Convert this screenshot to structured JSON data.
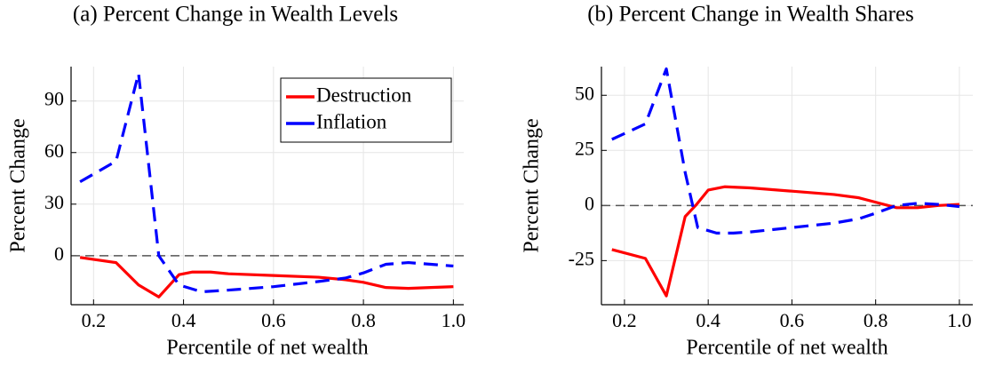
{
  "chart_data": [
    {
      "type": "line",
      "title": "(a) Percent Change in Wealth Levels",
      "xlabel": "Percentile of net wealth",
      "ylabel": "Percent Change",
      "xlim": [
        0.15,
        1.023
      ],
      "ylim": [
        -28.5,
        110
      ],
      "xticks": [
        0.2,
        0.4,
        0.6,
        0.8,
        {
          "value": 1.0,
          "label": "1.0"
        }
      ],
      "yticks": [
        0,
        30,
        60,
        90
      ],
      "grid": true,
      "hline": 0,
      "legend": "upper right",
      "series": [
        {
          "name": "Destruction",
          "color": "#ff0000",
          "style": "solid",
          "x": [
            0.17,
            0.25,
            0.3,
            0.345,
            0.39,
            0.42,
            0.46,
            0.5,
            0.6,
            0.7,
            0.76,
            0.8,
            0.85,
            0.9,
            0.95,
            1.0
          ],
          "values": [
            -1,
            -4,
            -17,
            -24,
            -11,
            -9.5,
            -9.5,
            -10.5,
            -11.5,
            -12.5,
            -14,
            -15.5,
            -18.5,
            -19,
            -18.5,
            -18
          ]
        },
        {
          "name": "Inflation",
          "color": "#0000ff",
          "style": "dashed",
          "x": [
            0.17,
            0.25,
            0.3,
            0.345,
            0.39,
            0.44,
            0.5,
            0.6,
            0.7,
            0.76,
            0.8,
            0.85,
            0.9,
            0.95,
            1.0
          ],
          "values": [
            43,
            55,
            106,
            0,
            -17,
            -21,
            -20,
            -18,
            -15,
            -13,
            -10,
            -5,
            -4,
            -5,
            -6
          ]
        }
      ]
    },
    {
      "type": "line",
      "title": "(b) Percent Change in Wealth Shares",
      "xlabel": "Percentile of net wealth",
      "ylabel": "Percent Change",
      "xlim": [
        0.145,
        1.032
      ],
      "ylim": [
        -45,
        63
      ],
      "xticks": [
        0.2,
        0.4,
        0.6,
        0.8,
        {
          "value": 1.0,
          "label": "1.0"
        }
      ],
      "yticks": [
        -25,
        0,
        25,
        50
      ],
      "grid": true,
      "hline": 0,
      "series": [
        {
          "color": "#ff0000",
          "style": "solid",
          "x": [
            0.17,
            0.25,
            0.3,
            0.345,
            0.37,
            0.4,
            0.44,
            0.5,
            0.6,
            0.7,
            0.76,
            0.8,
            0.85,
            0.9,
            0.95,
            1.0
          ],
          "values": [
            -20,
            -24,
            -41,
            -5,
            0,
            7,
            8.5,
            8,
            6.5,
            5,
            3.5,
            1.5,
            -1,
            -1,
            0,
            0.5
          ]
        },
        {
          "color": "#0000ff",
          "style": "dashed",
          "x": [
            0.17,
            0.25,
            0.3,
            0.345,
            0.375,
            0.42,
            0.46,
            0.5,
            0.6,
            0.7,
            0.76,
            0.8,
            0.85,
            0.9,
            0.95,
            1.0
          ],
          "values": [
            30,
            37,
            62,
            15,
            -10,
            -12.5,
            -12.5,
            -12,
            -10,
            -8,
            -6,
            -3.5,
            0,
            1,
            0.5,
            -0.5
          ]
        }
      ]
    }
  ]
}
